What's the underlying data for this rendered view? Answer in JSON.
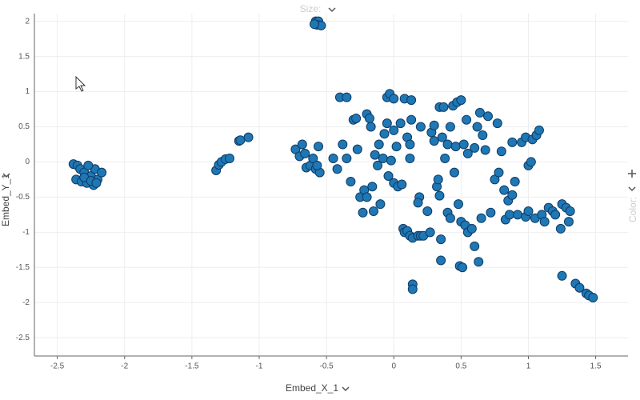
{
  "chart_data": {
    "type": "scatter",
    "x_label": "Embed_X_1",
    "y_label": "Embed_Y_1",
    "size_label": "Size:",
    "color_label": "Color:",
    "xlim": [
      -2.67,
      1.74
    ],
    "ylim": [
      -2.76,
      2.11
    ],
    "xticks": [
      -2.5,
      -2,
      -1.5,
      -1,
      -0.5,
      0,
      0.5,
      1,
      1.5
    ],
    "yticks": [
      -2.5,
      -2,
      -1.5,
      -1,
      -0.5,
      0,
      0.5,
      1,
      1.5,
      2
    ],
    "grid": true,
    "color": "#1f77b4",
    "x": [
      -2.38,
      -2.35,
      -2.33,
      -2.3,
      -2.36,
      -2.32,
      -2.28,
      -2.25,
      -2.22,
      -2.2,
      -2.23,
      -2.17,
      -2.27,
      -2.3,
      -2.25,
      -2.21,
      -1.32,
      -1.3,
      -1.28,
      -1.25,
      -1.22,
      -1.15,
      -1.14,
      -1.08,
      -0.58,
      -0.56,
      -0.57,
      -0.54,
      -0.59,
      1.25,
      1.35,
      1.38,
      1.43,
      1.45,
      1.48,
      -0.73,
      -0.68,
      -0.7,
      -0.66,
      -0.65,
      -0.62,
      -0.6,
      -0.58,
      -0.56,
      -0.55,
      -0.57,
      -0.45,
      -0.42,
      -0.4,
      -0.35,
      -0.38,
      -0.35,
      -0.32,
      -0.3,
      -0.28,
      -0.27,
      -0.25,
      -0.23,
      -0.22,
      -0.2,
      -0.2,
      -0.18,
      -0.17,
      -0.16,
      -0.15,
      -0.14,
      -0.12,
      -0.11,
      -0.1,
      -0.08,
      -0.07,
      -0.05,
      -0.04,
      -0.02,
      -0.05,
      -0.03,
      0.0,
      0.0,
      0.0,
      0.02,
      0.03,
      0.05,
      0.06,
      0.07,
      0.08,
      0.1,
      0.1,
      0.12,
      0.12,
      0.13,
      0.08,
      0.13,
      0.12,
      0.14,
      0.18,
      0.19,
      0.18,
      0.2,
      0.2,
      0.22,
      0.25,
      0.27,
      0.28,
      0.3,
      0.3,
      0.32,
      0.33,
      0.34,
      0.34,
      0.35,
      0.35,
      0.36,
      0.37,
      0.38,
      0.4,
      0.4,
      0.42,
      0.42,
      0.44,
      0.45,
      0.46,
      0.47,
      0.48,
      0.49,
      0.5,
      0.5,
      0.51,
      0.52,
      0.53,
      0.54,
      0.55,
      0.55,
      0.58,
      0.6,
      0.6,
      0.63,
      0.62,
      0.64,
      0.65,
      0.66,
      0.68,
      0.7,
      0.72,
      0.75,
      0.77,
      0.78,
      0.8,
      0.82,
      0.83,
      0.85,
      0.86,
      0.88,
      0.88,
      0.9,
      0.92,
      0.95,
      0.98,
      0.98,
      1.0,
      1.0,
      1.02,
      1.03,
      1.05,
      1.06,
      1.08,
      1.1,
      1.12,
      1.15,
      1.18,
      1.2,
      1.24,
      1.25,
      1.28,
      1.3,
      1.31,
      0.14,
      0.14
    ],
    "values": [
      -0.03,
      -0.05,
      -0.1,
      -0.15,
      -0.25,
      -0.28,
      -0.3,
      -0.2,
      -0.1,
      -0.25,
      -0.33,
      -0.15,
      -0.05,
      -0.22,
      -0.27,
      -0.3,
      -0.12,
      -0.04,
      0.0,
      0.04,
      0.05,
      0.3,
      0.31,
      0.35,
      2.0,
      2.0,
      1.95,
      1.94,
      1.96,
      -1.62,
      -1.73,
      -1.79,
      -1.87,
      -1.9,
      -1.93,
      0.18,
      0.25,
      0.08,
      0.12,
      -0.08,
      -0.05,
      0.05,
      -0.1,
      0.22,
      -0.15,
      -0.05,
      0.05,
      -0.1,
      0.92,
      0.92,
      0.25,
      0.05,
      -0.28,
      0.6,
      0.62,
      0.18,
      -0.5,
      -0.72,
      -0.4,
      0.68,
      -0.5,
      0.62,
      0.5,
      -0.35,
      -0.7,
      0.1,
      -0.05,
      0.25,
      -0.6,
      0.05,
      0.4,
      0.55,
      -0.2,
      0.02,
      0.92,
      0.97,
      0.9,
      0.45,
      -0.3,
      0.22,
      -0.35,
      0.55,
      -0.32,
      -0.95,
      -1.0,
      -0.98,
      0.35,
      0.25,
      0.05,
      0.6,
      0.9,
      0.88,
      -1.05,
      -1.08,
      -1.05,
      -0.5,
      -0.58,
      0.5,
      -1.05,
      -1.05,
      -0.7,
      -1.0,
      0.42,
      0.52,
      0.3,
      -0.35,
      -0.25,
      -0.48,
      0.78,
      -1.1,
      -1.4,
      0.35,
      0.78,
      0.05,
      -0.72,
      0.25,
      0.5,
      -0.8,
      0.8,
      -0.15,
      0.22,
      0.85,
      -0.6,
      -1.48,
      -0.85,
      0.88,
      -1.5,
      0.25,
      -0.9,
      0.6,
      0.12,
      -1.0,
      -0.95,
      -1.2,
      0.2,
      -1.42,
      0.5,
      0.7,
      -0.8,
      0.38,
      0.17,
      0.65,
      -0.72,
      -0.25,
      0.55,
      -0.15,
      0.15,
      -0.4,
      -0.82,
      -0.55,
      -0.75,
      0.28,
      -0.47,
      -0.28,
      -0.75,
      0.28,
      -0.78,
      0.35,
      -0.05,
      -0.7,
      0.0,
      0.32,
      -0.8,
      0.38,
      0.45,
      -0.75,
      -0.85,
      -0.65,
      -0.7,
      -0.75,
      -0.95,
      -0.6,
      -0.65,
      -0.85,
      -0.7,
      -1.74,
      -1.81
    ]
  }
}
